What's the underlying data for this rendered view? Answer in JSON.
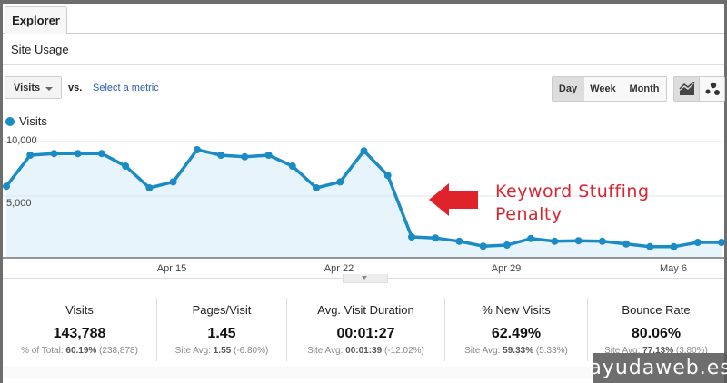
{
  "tabs": [
    {
      "label": "Explorer",
      "active": true
    }
  ],
  "section_title": "Site Usage",
  "toolbar": {
    "metric_select": "Visits",
    "vs_label": "vs.",
    "select_metric_link": "Select a metric",
    "period_buttons": [
      {
        "label": "Day",
        "active": true
      },
      {
        "label": "Week",
        "active": false
      },
      {
        "label": "Month",
        "active": false
      }
    ],
    "view_buttons": [
      {
        "icon": "line-chart-icon",
        "active": true
      },
      {
        "icon": "motion-chart-icon",
        "active": false
      }
    ]
  },
  "annotation": {
    "line1": "Keyword Stuffing",
    "line2": "Penalty",
    "arrow": "left-arrow-icon",
    "color": "#d8262f"
  },
  "chart_data": {
    "type": "area",
    "title": "",
    "legend": [
      {
        "name": "Visits",
        "color": "#1a8bc4"
      }
    ],
    "legend_position": "top-left",
    "xlabel": "",
    "ylabel": "",
    "ytick_labels": [
      "10,000",
      "5,000"
    ],
    "yticks": [
      10000,
      5000
    ],
    "ylim": [
      0,
      11000
    ],
    "grid": true,
    "xtick_labels": [
      "Apr 15",
      "Apr 22",
      "Apr 29",
      "May 6"
    ],
    "x": [
      "Apr 8",
      "Apr 9",
      "Apr 10",
      "Apr 11",
      "Apr 12",
      "Apr 13",
      "Apr 14",
      "Apr 15",
      "Apr 16",
      "Apr 17",
      "Apr 18",
      "Apr 19",
      "Apr 20",
      "Apr 21",
      "Apr 22",
      "Apr 23",
      "Apr 24",
      "Apr 25",
      "Apr 26",
      "Apr 27",
      "Apr 28",
      "Apr 29",
      "Apr 30",
      "May 1",
      "May 2",
      "May 3",
      "May 4",
      "May 5",
      "May 6",
      "May 7",
      "May 8"
    ],
    "series": [
      {
        "name": "Visits",
        "color": "#1a8bc4",
        "values": [
          5900,
          8750,
          8900,
          8900,
          8900,
          7750,
          5750,
          6300,
          9250,
          8750,
          8600,
          8750,
          7750,
          5750,
          6300,
          9150,
          6900,
          1250,
          1150,
          850,
          400,
          500,
          1100,
          850,
          900,
          850,
          600,
          350,
          350,
          750,
          750
        ]
      }
    ]
  },
  "stats": [
    {
      "label": "Visits",
      "value": "143,788",
      "sub_prefix": "% of Total:",
      "sub_bold": "60.19%",
      "sub_suffix": "(238,878)"
    },
    {
      "label": "Pages/Visit",
      "value": "1.45",
      "sub_prefix": "Site Avg:",
      "sub_bold": "1.55",
      "sub_suffix": "(-6.80%)"
    },
    {
      "label": "Avg. Visit Duration",
      "value": "00:01:27",
      "sub_prefix": "Site Avg:",
      "sub_bold": "00:01:39",
      "sub_suffix": "(-12.02%)"
    },
    {
      "label": "% New Visits",
      "value": "62.49%",
      "sub_prefix": "Site Avg:",
      "sub_bold": "59.33%",
      "sub_suffix": "(5.33%)"
    },
    {
      "label": "Bounce Rate",
      "value": "80.06%",
      "sub_prefix": "Site Avg:",
      "sub_bold": "77.13%",
      "sub_suffix": "(3.80%)"
    }
  ],
  "watermark": "ayudaweb.es"
}
